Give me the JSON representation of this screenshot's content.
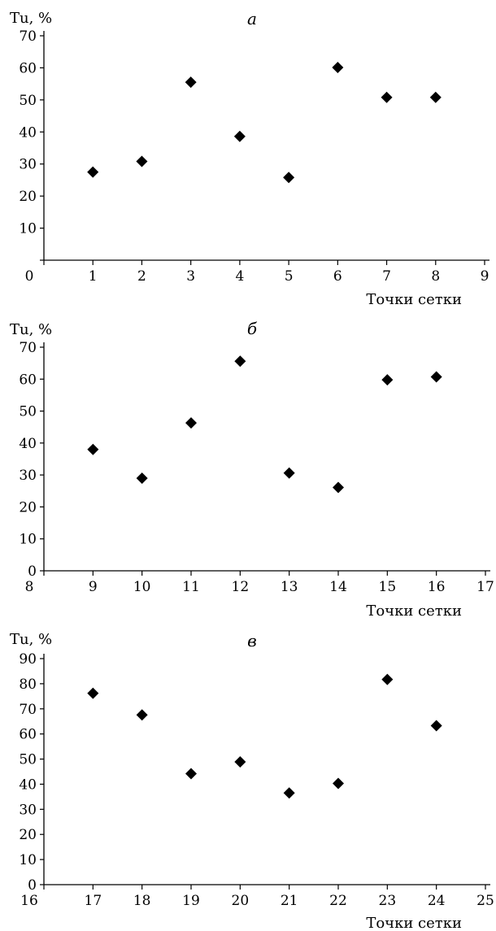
{
  "chart_data": [
    {
      "type": "scatter",
      "panel_label": "а",
      "ylabel": "Tu, %",
      "xlabel": "Точки сетки",
      "xlim": [
        0,
        9
      ],
      "ylim": [
        0,
        70
      ],
      "x_ticks": [
        0,
        1,
        2,
        3,
        4,
        5,
        6,
        7,
        8,
        9
      ],
      "y_ticks": [
        10,
        20,
        30,
        40,
        50,
        60,
        70
      ],
      "marker": "diamond",
      "grid": false,
      "points": [
        {
          "x": 1,
          "y": 27.5
        },
        {
          "x": 2,
          "y": 30.8
        },
        {
          "x": 3,
          "y": 55.5
        },
        {
          "x": 4,
          "y": 38.6
        },
        {
          "x": 5,
          "y": 25.8
        },
        {
          "x": 6,
          "y": 60.1
        },
        {
          "x": 7,
          "y": 50.8
        },
        {
          "x": 8,
          "y": 50.8
        }
      ]
    },
    {
      "type": "scatter",
      "panel_label": "б",
      "ylabel": "Tu, %",
      "xlabel": "Точки сетки",
      "xlim": [
        8,
        17
      ],
      "ylim": [
        0,
        70
      ],
      "x_ticks": [
        8,
        9,
        10,
        11,
        12,
        13,
        14,
        15,
        16,
        17
      ],
      "y_ticks": [
        0,
        10,
        20,
        30,
        40,
        50,
        60,
        70
      ],
      "marker": "diamond",
      "grid": false,
      "points": [
        {
          "x": 9,
          "y": 38.0
        },
        {
          "x": 10,
          "y": 29.0
        },
        {
          "x": 11,
          "y": 46.3
        },
        {
          "x": 12,
          "y": 65.6
        },
        {
          "x": 13,
          "y": 30.6
        },
        {
          "x": 14,
          "y": 26.1
        },
        {
          "x": 15,
          "y": 59.8
        },
        {
          "x": 16,
          "y": 60.7
        }
      ]
    },
    {
      "type": "scatter",
      "panel_label": "в",
      "ylabel": "Tu, %",
      "xlabel": "Точки сетки",
      "xlim": [
        16,
        25
      ],
      "ylim": [
        0,
        90
      ],
      "x_ticks": [
        16,
        17,
        18,
        19,
        20,
        21,
        22,
        23,
        24,
        25
      ],
      "y_ticks": [
        0,
        10,
        20,
        30,
        40,
        50,
        60,
        70,
        80,
        90
      ],
      "marker": "diamond",
      "grid": false,
      "points": [
        {
          "x": 17,
          "y": 76.2
        },
        {
          "x": 18,
          "y": 67.6
        },
        {
          "x": 19,
          "y": 44.2
        },
        {
          "x": 20,
          "y": 48.9
        },
        {
          "x": 21,
          "y": 36.5
        },
        {
          "x": 22,
          "y": 40.3
        },
        {
          "x": 23,
          "y": 81.7
        },
        {
          "x": 24,
          "y": 63.3
        }
      ]
    }
  ]
}
